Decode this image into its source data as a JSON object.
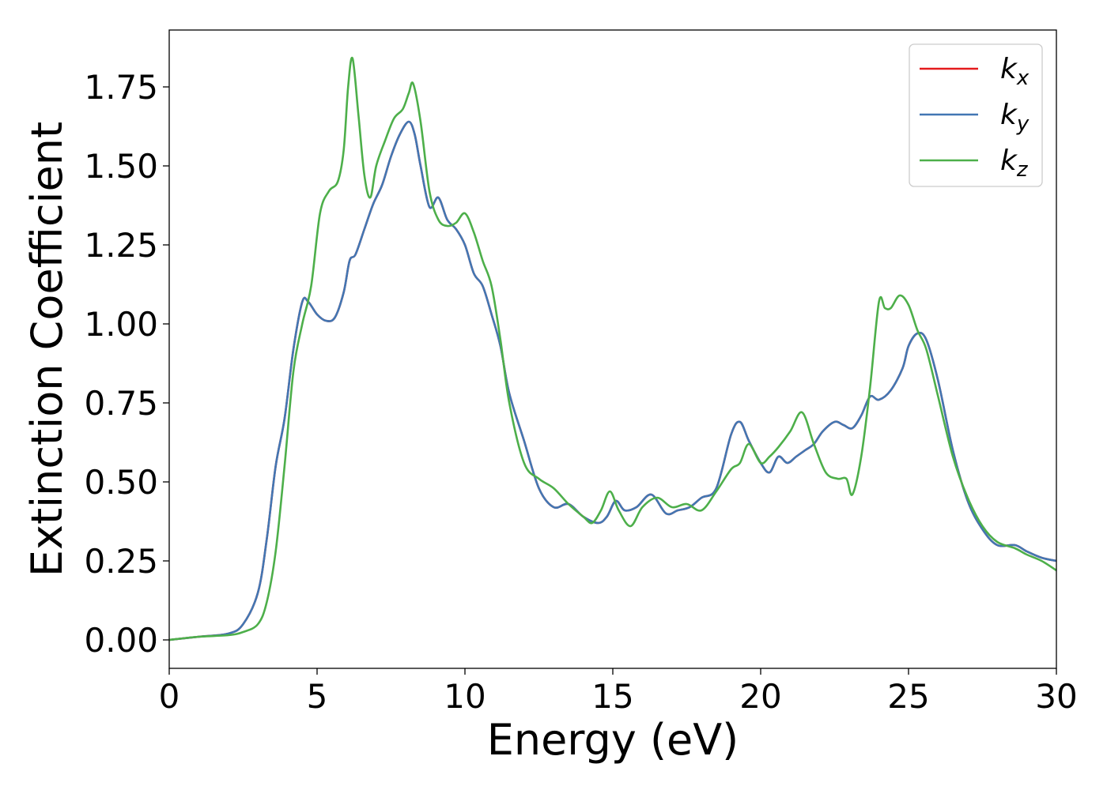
{
  "chart_data": {
    "type": "line",
    "xlabel": "Energy (eV)",
    "ylabel": "Extinction Coefficient",
    "xlim": [
      0,
      30
    ],
    "ylim": [
      -0.09,
      1.93
    ],
    "xticks": [
      0,
      5,
      10,
      15,
      20,
      25,
      30
    ],
    "xtick_labels": [
      "0",
      "5",
      "10",
      "15",
      "20",
      "25",
      "30"
    ],
    "yticks": [
      0.0,
      0.25,
      0.5,
      0.75,
      1.0,
      1.25,
      1.5,
      1.75
    ],
    "ytick_labels": [
      "0.00",
      "0.25",
      "0.50",
      "0.75",
      "1.00",
      "1.25",
      "1.50",
      "1.75"
    ],
    "grid": false,
    "legend_position": "top-right",
    "series": [
      {
        "name": "k_x",
        "legend_base": "k",
        "legend_sub": "x",
        "color": "#e41a1c",
        "x": [
          0,
          1,
          2,
          2.5,
          3,
          3.3,
          3.6,
          3.9,
          4.2,
          4.5,
          4.7,
          5.0,
          5.3,
          5.6,
          5.9,
          6.1,
          6.3,
          6.6,
          6.9,
          7.2,
          7.5,
          7.8,
          8.1,
          8.3,
          8.5,
          8.8,
          9.1,
          9.4,
          9.7,
          10.0,
          10.3,
          10.6,
          10.9,
          11.2,
          11.5,
          12.0,
          12.5,
          13.0,
          13.5,
          14.0,
          14.5,
          14.8,
          15.1,
          15.4,
          15.8,
          16.3,
          16.8,
          17.2,
          17.6,
          18.0,
          18.5,
          19.0,
          19.3,
          19.6,
          20.0,
          20.3,
          20.6,
          20.9,
          21.2,
          21.5,
          21.8,
          22.1,
          22.5,
          22.8,
          23.1,
          23.4,
          23.7,
          24.0,
          24.4,
          24.8,
          25.0,
          25.3,
          25.6,
          26.0,
          26.5,
          27.0,
          27.5,
          28.0,
          28.6,
          29.0,
          29.5,
          30.0
        ],
        "y": [
          0.0,
          0.01,
          0.02,
          0.05,
          0.15,
          0.32,
          0.55,
          0.7,
          0.92,
          1.07,
          1.07,
          1.03,
          1.01,
          1.02,
          1.1,
          1.2,
          1.22,
          1.3,
          1.38,
          1.44,
          1.53,
          1.6,
          1.64,
          1.6,
          1.5,
          1.37,
          1.4,
          1.33,
          1.3,
          1.25,
          1.16,
          1.12,
          1.03,
          0.93,
          0.78,
          0.63,
          0.48,
          0.42,
          0.43,
          0.39,
          0.37,
          0.39,
          0.44,
          0.41,
          0.42,
          0.46,
          0.4,
          0.41,
          0.42,
          0.45,
          0.48,
          0.65,
          0.69,
          0.63,
          0.56,
          0.53,
          0.58,
          0.56,
          0.58,
          0.6,
          0.62,
          0.66,
          0.69,
          0.68,
          0.67,
          0.71,
          0.77,
          0.76,
          0.79,
          0.86,
          0.93,
          0.97,
          0.95,
          0.82,
          0.6,
          0.44,
          0.35,
          0.3,
          0.3,
          0.28,
          0.26,
          0.25
        ]
      },
      {
        "name": "k_y",
        "legend_base": "k",
        "legend_sub": "y",
        "color": "#4277b3",
        "x": [
          0,
          1,
          2,
          2.5,
          3,
          3.3,
          3.6,
          3.9,
          4.2,
          4.5,
          4.7,
          5.0,
          5.3,
          5.6,
          5.9,
          6.1,
          6.3,
          6.6,
          6.9,
          7.2,
          7.5,
          7.8,
          8.1,
          8.3,
          8.5,
          8.8,
          9.1,
          9.4,
          9.7,
          10.0,
          10.3,
          10.6,
          10.9,
          11.2,
          11.5,
          12.0,
          12.5,
          13.0,
          13.5,
          14.0,
          14.5,
          14.8,
          15.1,
          15.4,
          15.8,
          16.3,
          16.8,
          17.2,
          17.6,
          18.0,
          18.5,
          19.0,
          19.3,
          19.6,
          20.0,
          20.3,
          20.6,
          20.9,
          21.2,
          21.5,
          21.8,
          22.1,
          22.5,
          22.8,
          23.1,
          23.4,
          23.7,
          24.0,
          24.4,
          24.8,
          25.0,
          25.3,
          25.6,
          26.0,
          26.5,
          27.0,
          27.5,
          28.0,
          28.6,
          29.0,
          29.5,
          30.0
        ],
        "y": [
          0.0,
          0.01,
          0.02,
          0.05,
          0.15,
          0.32,
          0.55,
          0.7,
          0.92,
          1.07,
          1.07,
          1.03,
          1.01,
          1.02,
          1.1,
          1.2,
          1.22,
          1.3,
          1.38,
          1.44,
          1.53,
          1.6,
          1.64,
          1.6,
          1.5,
          1.37,
          1.4,
          1.33,
          1.3,
          1.25,
          1.16,
          1.12,
          1.03,
          0.93,
          0.78,
          0.63,
          0.48,
          0.42,
          0.43,
          0.39,
          0.37,
          0.39,
          0.44,
          0.41,
          0.42,
          0.46,
          0.4,
          0.41,
          0.42,
          0.45,
          0.48,
          0.65,
          0.69,
          0.63,
          0.56,
          0.53,
          0.58,
          0.56,
          0.58,
          0.6,
          0.62,
          0.66,
          0.69,
          0.68,
          0.67,
          0.71,
          0.77,
          0.76,
          0.79,
          0.86,
          0.93,
          0.97,
          0.95,
          0.82,
          0.6,
          0.44,
          0.35,
          0.3,
          0.3,
          0.28,
          0.26,
          0.25
        ]
      },
      {
        "name": "k_z",
        "legend_base": "k",
        "legend_sub": "z",
        "color": "#4daf4a",
        "x": [
          0,
          1,
          2,
          2.5,
          3,
          3.3,
          3.6,
          3.9,
          4.2,
          4.5,
          4.8,
          5.1,
          5.4,
          5.7,
          5.9,
          6.05,
          6.2,
          6.4,
          6.6,
          6.8,
          7.0,
          7.3,
          7.6,
          7.9,
          8.1,
          8.25,
          8.5,
          8.8,
          9.1,
          9.4,
          9.7,
          10.0,
          10.3,
          10.6,
          10.9,
          11.2,
          11.5,
          12.0,
          12.5,
          13.0,
          13.5,
          14.0,
          14.3,
          14.6,
          14.9,
          15.2,
          15.6,
          16.0,
          16.5,
          17.0,
          17.5,
          18.0,
          18.5,
          19.0,
          19.3,
          19.6,
          20.0,
          20.3,
          20.6,
          21.0,
          21.4,
          21.8,
          22.2,
          22.6,
          22.9,
          23.1,
          23.4,
          23.7,
          24.0,
          24.2,
          24.4,
          24.7,
          25.0,
          25.3,
          25.6,
          26.0,
          26.5,
          27.0,
          27.5,
          28.0,
          28.6,
          29.0,
          29.5,
          30.0
        ],
        "y": [
          0.0,
          0.01,
          0.015,
          0.025,
          0.05,
          0.12,
          0.28,
          0.55,
          0.85,
          1.0,
          1.12,
          1.35,
          1.42,
          1.45,
          1.55,
          1.75,
          1.84,
          1.66,
          1.47,
          1.4,
          1.5,
          1.58,
          1.65,
          1.68,
          1.73,
          1.76,
          1.64,
          1.42,
          1.33,
          1.31,
          1.32,
          1.35,
          1.29,
          1.2,
          1.12,
          0.95,
          0.75,
          0.56,
          0.51,
          0.48,
          0.43,
          0.39,
          0.37,
          0.41,
          0.47,
          0.41,
          0.36,
          0.42,
          0.45,
          0.42,
          0.43,
          0.41,
          0.47,
          0.54,
          0.56,
          0.62,
          0.56,
          0.58,
          0.61,
          0.66,
          0.72,
          0.62,
          0.53,
          0.51,
          0.51,
          0.46,
          0.58,
          0.8,
          1.07,
          1.05,
          1.05,
          1.09,
          1.06,
          0.98,
          0.92,
          0.77,
          0.58,
          0.45,
          0.36,
          0.31,
          0.29,
          0.27,
          0.25,
          0.22
        ]
      }
    ]
  }
}
